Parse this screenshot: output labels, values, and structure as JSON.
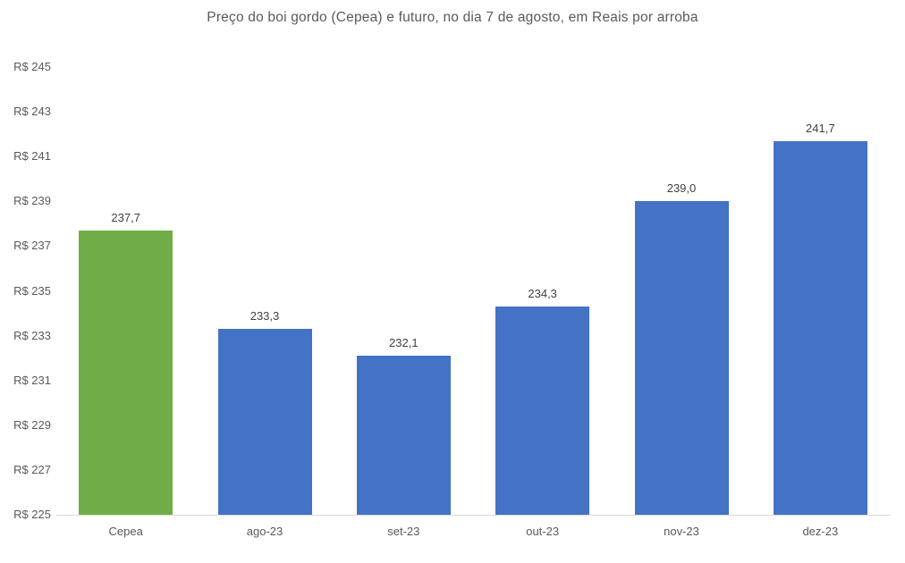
{
  "chart_data": {
    "type": "bar",
    "title": "Preço do boi gordo (Cepea) e futuro, no dia 7 de agosto, em Reais por arroba",
    "xlabel": "",
    "ylabel": "",
    "categories": [
      "Cepea",
      "ago-23",
      "set-23",
      "out-23",
      "nov-23",
      "dez-23"
    ],
    "values": [
      237.7,
      233.3,
      232.1,
      234.3,
      239.0,
      241.7
    ],
    "value_labels": [
      "237,7",
      "233,3",
      "232,1",
      "234,3",
      "239,0",
      "241,7"
    ],
    "bar_colors": [
      "#70AD47",
      "#4472C4",
      "#4472C4",
      "#4472C4",
      "#4472C4",
      "#4472C4"
    ],
    "ylim": [
      225,
      245
    ],
    "ytick_step": 2,
    "ytick_labels": [
      "R$ 225",
      "R$ 227",
      "R$ 229",
      "R$ 231",
      "R$ 233",
      "R$ 235",
      "R$ 237",
      "R$ 239",
      "R$ 241",
      "R$ 243",
      "R$ 245"
    ],
    "grid": false,
    "legend": false,
    "colors": {
      "cepea_bar": "#70AD47",
      "future_bar": "#4472C4",
      "axis_text": "#595959",
      "value_text": "#404040",
      "baseline": "#D9D9D9"
    }
  }
}
